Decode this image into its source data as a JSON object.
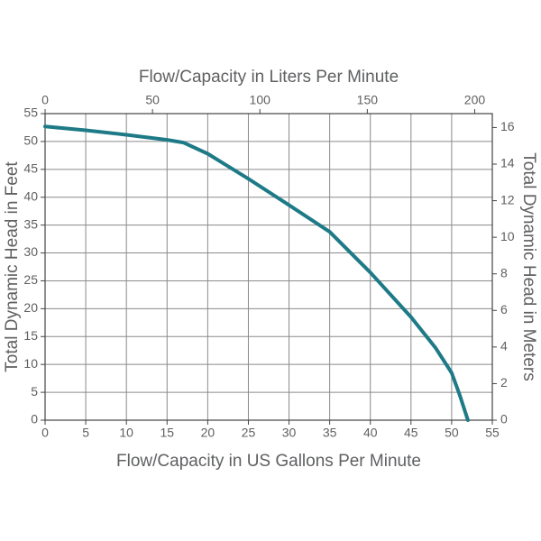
{
  "chart_data": {
    "type": "line",
    "x_label": "Flow/Capacity in US Gallons Per Minute",
    "x2_label": "Flow/Capacity in Liters Per Minute",
    "y_label": "Total Dynamic Head in Feet",
    "y2_label": "Total Dynamic Head in Meters",
    "x": [
      0,
      5,
      10,
      15,
      17,
      20,
      25,
      30,
      35,
      40,
      45,
      48,
      50,
      51,
      52
    ],
    "series": [
      {
        "color": "#1d7a86",
        "values": [
          52.7,
          52,
          51.2,
          50.3,
          49.8,
          47.8,
          43.3,
          38.6,
          33.8,
          26.5,
          18.5,
          13,
          8.5,
          4.5,
          0
        ]
      }
    ],
    "xlim": [
      0,
      55
    ],
    "xticks": [
      0,
      5,
      10,
      15,
      20,
      25,
      30,
      35,
      40,
      45,
      50,
      55
    ],
    "x2lim": [
      0,
      208.2
    ],
    "x2ticks": [
      0,
      50,
      100,
      150,
      200
    ],
    "ylim": [
      0,
      55
    ],
    "yticks": [
      0,
      5,
      10,
      15,
      20,
      25,
      30,
      35,
      40,
      45,
      50,
      55
    ],
    "y2lim": [
      0,
      16.76
    ],
    "y2ticks": [
      0,
      2,
      4,
      6,
      8,
      10,
      12,
      14,
      16
    ],
    "grid": true
  }
}
